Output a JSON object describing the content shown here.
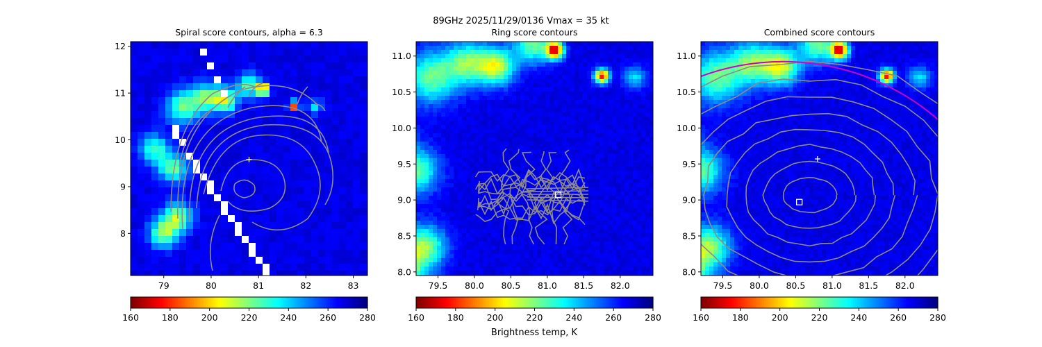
{
  "figure": {
    "suptitle": "89GHz  2025/11/29/0136    Vmax = 35 kt",
    "colorbar_label": "Brightness temp, K"
  },
  "chart_data": [
    {
      "type": "heatmap",
      "title": "Spiral score contours, alpha =  6.3",
      "xlim": [
        78.3,
        83.3
      ],
      "ylim": [
        7.1,
        12.1
      ],
      "xticks": [
        79,
        80,
        81,
        82,
        83
      ],
      "yticks": [
        8,
        9,
        10,
        11,
        12
      ],
      "colorbar": {
        "min": 160,
        "max": 280,
        "ticks": [
          160,
          180,
          200,
          220,
          240,
          260,
          280
        ],
        "cmap": "jet_r"
      },
      "markers": [
        {
          "kind": "plus",
          "x": 80.8,
          "y": 9.58
        }
      ],
      "contours": "gray spiral-score contours"
    },
    {
      "type": "heatmap",
      "title": "Ring score contours",
      "xlim": [
        79.2,
        82.45
      ],
      "ylim": [
        7.95,
        11.2
      ],
      "xticks": [
        79.5,
        80.0,
        80.5,
        81.0,
        81.5,
        82.0
      ],
      "yticks": [
        8.0,
        8.5,
        9.0,
        9.5,
        10.0,
        10.5,
        11.0
      ],
      "colorbar": {
        "min": 160,
        "max": 280,
        "ticks": [
          160,
          180,
          200,
          220,
          240,
          260,
          280
        ],
        "cmap": "jet_r"
      },
      "markers": [
        {
          "kind": "square",
          "x": 81.15,
          "y": 9.07
        }
      ],
      "contours": "gray ring-score contours"
    },
    {
      "type": "heatmap",
      "title": "Combined score contours",
      "xlim": [
        79.2,
        82.45
      ],
      "ylim": [
        7.95,
        11.2
      ],
      "xticks": [
        79.5,
        80.0,
        80.5,
        81.0,
        81.5,
        82.0
      ],
      "yticks": [
        8.0,
        8.5,
        9.0,
        9.5,
        10.0,
        10.5,
        11.0
      ],
      "colorbar": {
        "min": 160,
        "max": 280,
        "ticks": [
          160,
          180,
          200,
          220,
          240,
          260,
          280
        ],
        "cmap": "jet_r"
      },
      "markers": [
        {
          "kind": "plus",
          "x": 80.8,
          "y": 9.57
        },
        {
          "kind": "square",
          "x": 80.55,
          "y": 8.97
        }
      ],
      "contours": "gray combined-score contours",
      "arc_color": "#cc00cc"
    }
  ]
}
